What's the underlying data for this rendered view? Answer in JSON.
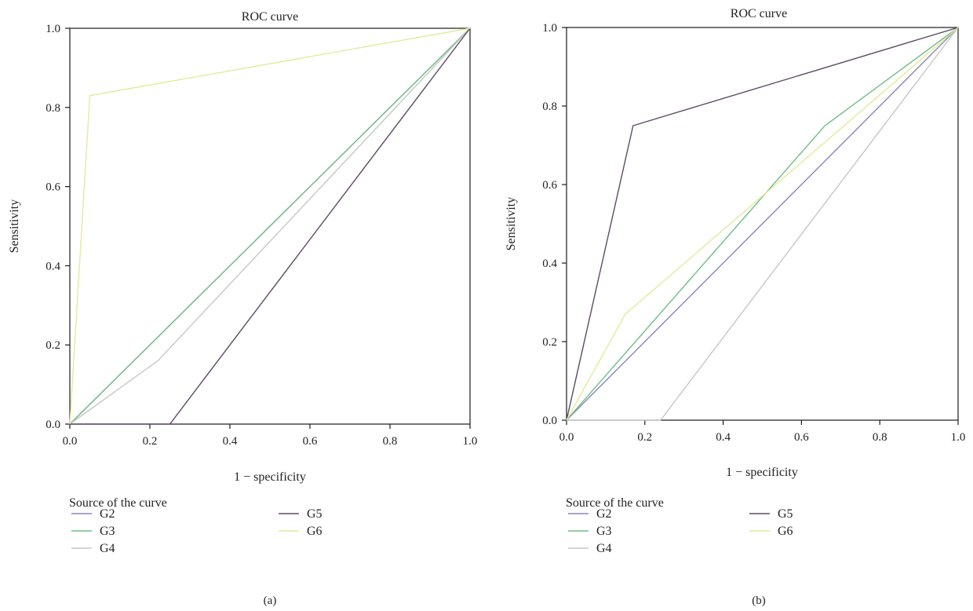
{
  "colors": {
    "G2": "#8a86bd",
    "G3": "#6fbf86",
    "G4": "#c7c7c2",
    "G5": "#5e4a63",
    "G6": "#e3ea9b"
  },
  "chart_data": [
    {
      "type": "line",
      "title": "ROC curve",
      "xlabel": "1 − specificity",
      "ylabel": "Sensitivity",
      "xlim": [
        0,
        1
      ],
      "ylim": [
        0,
        1
      ],
      "xticks": [
        "0.0",
        "0.2",
        "0.4",
        "0.6",
        "0.8",
        "1.0"
      ],
      "yticks": [
        "0.0",
        "0.2",
        "0.4",
        "0.6",
        "0.8",
        "1.0"
      ],
      "grid": false,
      "legend_title": "Source of the curve",
      "legend_position": "bottom",
      "panel_label": "(a)",
      "series": [
        {
          "name": "G2",
          "x": [
            0,
            1
          ],
          "y": [
            0,
            1
          ]
        },
        {
          "name": "G3",
          "x": [
            0,
            1
          ],
          "y": [
            0,
            1
          ]
        },
        {
          "name": "G4",
          "x": [
            0,
            0.22,
            1
          ],
          "y": [
            0,
            0.16,
            1
          ]
        },
        {
          "name": "G5",
          "x": [
            0,
            0.25,
            1
          ],
          "y": [
            0,
            0,
            1
          ]
        },
        {
          "name": "G6",
          "x": [
            0,
            0.05,
            1
          ],
          "y": [
            0,
            0.83,
            1
          ]
        }
      ]
    },
    {
      "type": "line",
      "title": "ROC curve",
      "xlabel": "1 − specificity",
      "ylabel": "Sensitivity",
      "xlim": [
        0,
        1
      ],
      "ylim": [
        0,
        1
      ],
      "xticks": [
        "0.0",
        "0.2",
        "0.4",
        "0.6",
        "0.8",
        "1.0"
      ],
      "yticks": [
        "0.0",
        "0.2",
        "0.4",
        "0.6",
        "0.8",
        "1.0"
      ],
      "grid": false,
      "legend_title": "Source of the curve",
      "legend_position": "bottom",
      "panel_label": "(b)",
      "series": [
        {
          "name": "G2",
          "x": [
            0,
            1
          ],
          "y": [
            0,
            1
          ]
        },
        {
          "name": "G3",
          "x": [
            0,
            0.66,
            1
          ],
          "y": [
            0,
            0.75,
            1
          ]
        },
        {
          "name": "G4",
          "x": [
            0,
            0.24,
            1
          ],
          "y": [
            0,
            0,
            1
          ]
        },
        {
          "name": "G5",
          "x": [
            0,
            0.17,
            1
          ],
          "y": [
            0,
            0.75,
            1
          ]
        },
        {
          "name": "G6",
          "x": [
            0,
            0.15,
            1
          ],
          "y": [
            0,
            0.27,
            1
          ]
        }
      ]
    }
  ]
}
